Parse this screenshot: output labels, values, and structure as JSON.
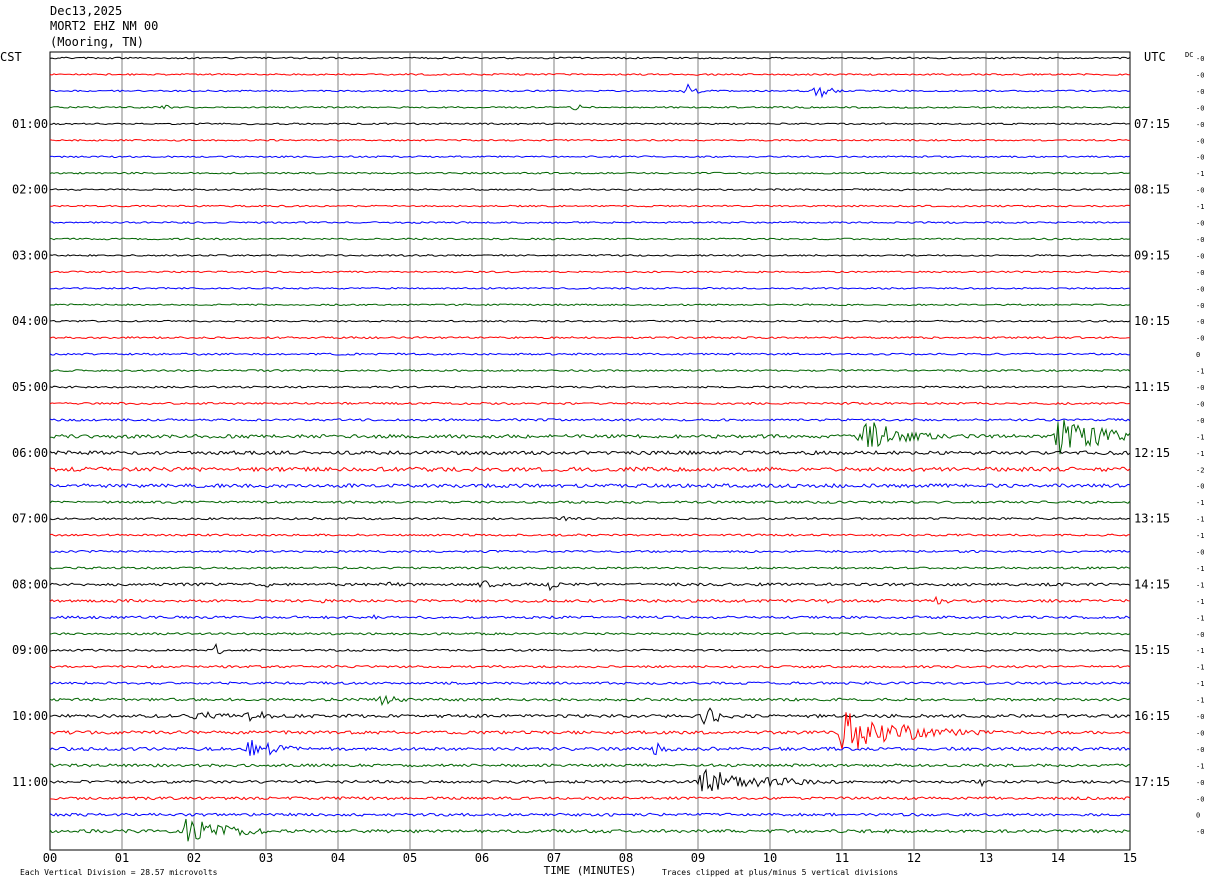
{
  "header": {
    "date": "Dec13,2025",
    "station": "MORT2 EHZ NM 00",
    "location": "(Mooring, TN)"
  },
  "axis": {
    "left_zone": "CST",
    "right_zone": "UTC",
    "dc_label": "DC",
    "xlabel": "TIME (MINUTES)",
    "xticks": [
      "00",
      "01",
      "02",
      "03",
      "04",
      "05",
      "06",
      "07",
      "08",
      "09",
      "10",
      "11",
      "12",
      "13",
      "14",
      "15"
    ]
  },
  "footer": {
    "scale": "Each Vertical Division =   28.57 microvolts",
    "clip_note": "Traces clipped at plus/minus 5 vertical divisions"
  },
  "colors": {
    "trace_cycle": [
      "#000000",
      "#ff0000",
      "#0000ff",
      "#006400"
    ],
    "grid": "#808080"
  },
  "chart_data": {
    "type": "line",
    "title": "",
    "xlabel": "TIME (MINUTES)",
    "ylabel": "",
    "xlim": [
      0,
      15
    ],
    "minutes_per_trace": 15,
    "trace_count": 48,
    "cst_hour_labels": [
      {
        "trace": 4,
        "label": "01:00"
      },
      {
        "trace": 8,
        "label": "02:00"
      },
      {
        "trace": 12,
        "label": "03:00"
      },
      {
        "trace": 16,
        "label": "04:00"
      },
      {
        "trace": 20,
        "label": "05:00"
      },
      {
        "trace": 24,
        "label": "06:00"
      },
      {
        "trace": 28,
        "label": "07:00"
      },
      {
        "trace": 32,
        "label": "08:00"
      },
      {
        "trace": 36,
        "label": "09:00"
      },
      {
        "trace": 40,
        "label": "10:00"
      },
      {
        "trace": 44,
        "label": "11:00"
      }
    ],
    "utc_labels": [
      {
        "trace": 4,
        "label": "07:15"
      },
      {
        "trace": 8,
        "label": "08:15"
      },
      {
        "trace": 12,
        "label": "09:15"
      },
      {
        "trace": 16,
        "label": "10:15"
      },
      {
        "trace": 20,
        "label": "11:15"
      },
      {
        "trace": 24,
        "label": "12:15"
      },
      {
        "trace": 28,
        "label": "13:15"
      },
      {
        "trace": 32,
        "label": "14:15"
      },
      {
        "trace": 36,
        "label": "15:15"
      },
      {
        "trace": 40,
        "label": "16:15"
      },
      {
        "trace": 44,
        "label": "17:15"
      }
    ],
    "dc_offsets": [
      "-0",
      "-0",
      "-0",
      "-0",
      "-0",
      "-0",
      "-0",
      "-1",
      "-0",
      "-1",
      "-0",
      "-0",
      "-0",
      "-0",
      "-0",
      "-0",
      "-0",
      "-0",
      "0",
      "-1",
      "-0",
      "-0",
      "-0",
      "-1",
      "-1",
      "-2",
      "-0",
      "-1",
      "-1",
      "-1",
      "-0",
      "-1",
      "-1",
      "-1",
      "-1",
      "-0",
      "-1",
      "-1",
      "-1",
      "-1",
      "-0",
      "-0",
      "-0",
      "-1",
      "-0",
      "-0",
      "0",
      "-0"
    ],
    "noise_level": [
      0.35,
      0.35,
      0.35,
      0.35,
      0.35,
      0.35,
      0.35,
      0.35,
      0.35,
      0.35,
      0.35,
      0.35,
      0.35,
      0.35,
      0.35,
      0.35,
      0.35,
      0.4,
      0.4,
      0.4,
      0.4,
      0.45,
      0.5,
      0.8,
      0.8,
      0.9,
      0.8,
      0.5,
      0.45,
      0.45,
      0.45,
      0.45,
      0.6,
      0.6,
      0.55,
      0.45,
      0.45,
      0.5,
      0.55,
      0.6,
      0.7,
      0.7,
      0.7,
      0.6,
      0.6,
      0.6,
      0.6,
      0.7
    ],
    "events": [
      {
        "trace": 2,
        "minute": 8.85,
        "amp": 3.5,
        "dur": 0.35
      },
      {
        "trace": 2,
        "minute": 10.65,
        "amp": 4.0,
        "dur": 0.5
      },
      {
        "trace": 2,
        "minute": 12.55,
        "amp": 1.0,
        "dur": 0.15
      },
      {
        "trace": 3,
        "minute": 1.6,
        "amp": 2.2,
        "dur": 0.2
      },
      {
        "trace": 3,
        "minute": 7.3,
        "amp": 1.8,
        "dur": 0.6
      },
      {
        "trace": 8,
        "minute": 11.8,
        "amp": 0.8,
        "dur": 0.4
      },
      {
        "trace": 23,
        "minute": 11.25,
        "amp": 9.0,
        "dur": 1.6
      },
      {
        "trace": 23,
        "minute": 14.0,
        "amp": 10.0,
        "dur": 1.8
      },
      {
        "trace": 28,
        "minute": 7.15,
        "amp": 1.2,
        "dur": 0.6
      },
      {
        "trace": 32,
        "minute": 1.0,
        "amp": 0.9,
        "dur": 0.8
      },
      {
        "trace": 32,
        "minute": 3.0,
        "amp": 1.5,
        "dur": 0.4
      },
      {
        "trace": 32,
        "minute": 4.7,
        "amp": 1.3,
        "dur": 0.8
      },
      {
        "trace": 32,
        "minute": 6.0,
        "amp": 2.0,
        "dur": 0.8
      },
      {
        "trace": 32,
        "minute": 6.95,
        "amp": 3.0,
        "dur": 0.3
      },
      {
        "trace": 33,
        "minute": 3.8,
        "amp": 1.2,
        "dur": 0.2
      },
      {
        "trace": 33,
        "minute": 10.8,
        "amp": 1.6,
        "dur": 0.6
      },
      {
        "trace": 33,
        "minute": 12.3,
        "amp": 2.4,
        "dur": 0.6
      },
      {
        "trace": 34,
        "minute": 4.5,
        "amp": 1.0,
        "dur": 0.7
      },
      {
        "trace": 35,
        "minute": 11.95,
        "amp": 0.8,
        "dur": 0.2
      },
      {
        "trace": 36,
        "minute": 2.3,
        "amp": 3.0,
        "dur": 0.3
      },
      {
        "trace": 39,
        "minute": 4.6,
        "amp": 3.0,
        "dur": 0.7
      },
      {
        "trace": 39,
        "minute": 12.25,
        "amp": 1.2,
        "dur": 0.2
      },
      {
        "trace": 39,
        "minute": 14.25,
        "amp": 0.9,
        "dur": 0.2
      },
      {
        "trace": 40,
        "minute": 2.0,
        "amp": 2.5,
        "dur": 1.5
      },
      {
        "trace": 40,
        "minute": 2.75,
        "amp": 5.0,
        "dur": 0.6
      },
      {
        "trace": 40,
        "minute": 9.1,
        "amp": 5.0,
        "dur": 0.8
      },
      {
        "trace": 41,
        "minute": 11.0,
        "amp": 10.0,
        "dur": 2.5
      },
      {
        "trace": 42,
        "minute": 2.75,
        "amp": 5.0,
        "dur": 1.4
      },
      {
        "trace": 42,
        "minute": 8.4,
        "amp": 3.0,
        "dur": 0.9
      },
      {
        "trace": 44,
        "minute": 9.0,
        "amp": 6.0,
        "dur": 2.8
      },
      {
        "trace": 44,
        "minute": 12.95,
        "amp": 2.0,
        "dur": 0.2
      },
      {
        "trace": 47,
        "minute": 1.9,
        "amp": 6.5,
        "dur": 1.8
      },
      {
        "trace": 47,
        "minute": 11.5,
        "amp": 0.9,
        "dur": 3.0
      }
    ]
  }
}
